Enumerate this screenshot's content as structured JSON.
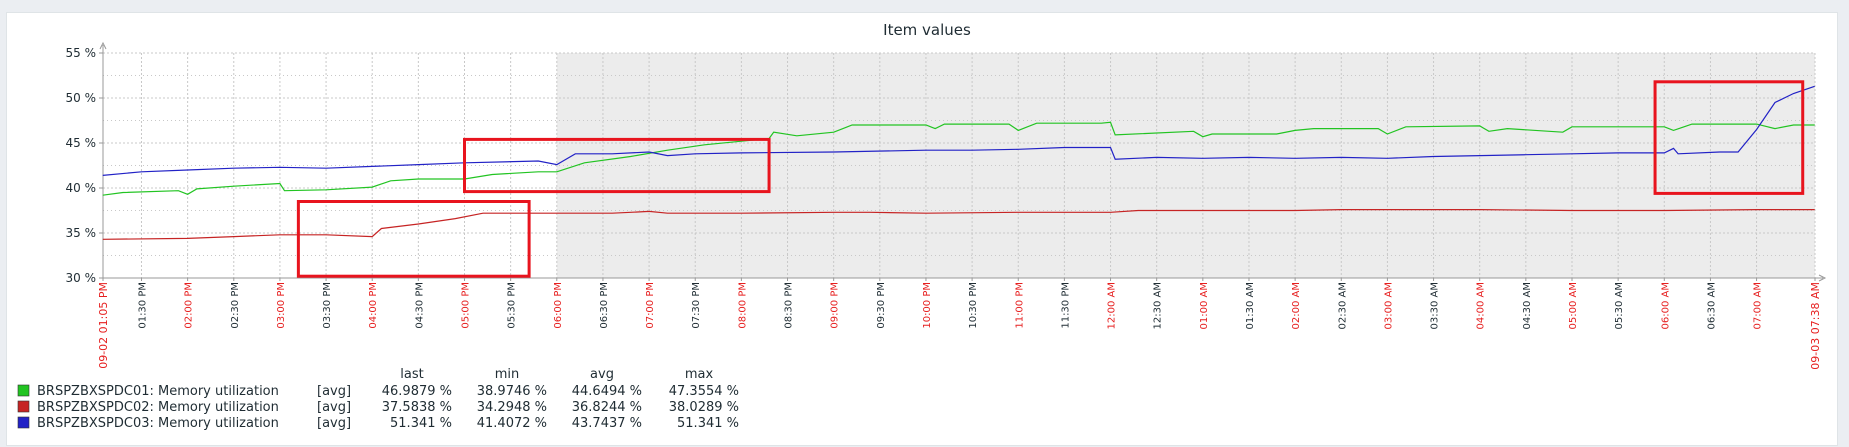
{
  "chart_data": {
    "type": "line",
    "title": "Item values",
    "y_ticks": [
      "55 %",
      "50 %",
      "45 %",
      "40 %",
      "35 %",
      "30 %"
    ],
    "ylim": [
      30,
      55
    ],
    "x_ticks": [
      {
        "label": "09-02 01:05 PM",
        "hour": 13.083,
        "major": true
      },
      {
        "label": "01:30 PM",
        "hour": 13.5,
        "major": false
      },
      {
        "label": "02:00 PM",
        "hour": 14,
        "major": true
      },
      {
        "label": "02:30 PM",
        "hour": 14.5,
        "major": false
      },
      {
        "label": "03:00 PM",
        "hour": 15,
        "major": true
      },
      {
        "label": "03:30 PM",
        "hour": 15.5,
        "major": false
      },
      {
        "label": "04:00 PM",
        "hour": 16,
        "major": true
      },
      {
        "label": "04:30 PM",
        "hour": 16.5,
        "major": false
      },
      {
        "label": "05:00 PM",
        "hour": 17,
        "major": true
      },
      {
        "label": "05:30 PM",
        "hour": 17.5,
        "major": false
      },
      {
        "label": "06:00 PM",
        "hour": 18,
        "major": true
      },
      {
        "label": "06:30 PM",
        "hour": 18.5,
        "major": false
      },
      {
        "label": "07:00 PM",
        "hour": 19,
        "major": true
      },
      {
        "label": "07:30 PM",
        "hour": 19.5,
        "major": false
      },
      {
        "label": "08:00 PM",
        "hour": 20,
        "major": true
      },
      {
        "label": "08:30 PM",
        "hour": 20.5,
        "major": false
      },
      {
        "label": "09:00 PM",
        "hour": 21,
        "major": true
      },
      {
        "label": "09:30 PM",
        "hour": 21.5,
        "major": false
      },
      {
        "label": "10:00 PM",
        "hour": 22,
        "major": true
      },
      {
        "label": "10:30 PM",
        "hour": 22.5,
        "major": false
      },
      {
        "label": "11:00 PM",
        "hour": 23,
        "major": true
      },
      {
        "label": "11:30 PM",
        "hour": 23.5,
        "major": false
      },
      {
        "label": "12:00 AM",
        "hour": 24,
        "major": true
      },
      {
        "label": "12:30 AM",
        "hour": 24.5,
        "major": false
      },
      {
        "label": "01:00 AM",
        "hour": 25,
        "major": true
      },
      {
        "label": "01:30 AM",
        "hour": 25.5,
        "major": false
      },
      {
        "label": "02:00 AM",
        "hour": 26,
        "major": true
      },
      {
        "label": "02:30 AM",
        "hour": 26.5,
        "major": false
      },
      {
        "label": "03:00 AM",
        "hour": 27,
        "major": true
      },
      {
        "label": "03:30 AM",
        "hour": 27.5,
        "major": false
      },
      {
        "label": "04:00 AM",
        "hour": 28,
        "major": true
      },
      {
        "label": "04:30 AM",
        "hour": 28.5,
        "major": false
      },
      {
        "label": "05:00 AM",
        "hour": 29,
        "major": true
      },
      {
        "label": "05:30 AM",
        "hour": 29.5,
        "major": false
      },
      {
        "label": "06:00 AM",
        "hour": 30,
        "major": true
      },
      {
        "label": "06:30 AM",
        "hour": 30.5,
        "major": false
      },
      {
        "label": "07:00 AM",
        "hour": 31,
        "major": true
      },
      {
        "label": "09-03 07:38 AM",
        "hour": 31.633,
        "major": true
      }
    ],
    "x_range_hours": [
      13.083,
      31.633
    ],
    "shaded_from_hour": 18,
    "grid": true,
    "series": [
      {
        "name": "BRSPZBXSPDC01: Memory utilization",
        "color": "#22c422",
        "points": [
          [
            13.08,
            39.2
          ],
          [
            13.3,
            39.5
          ],
          [
            13.9,
            39.7
          ],
          [
            14.0,
            39.3
          ],
          [
            14.1,
            39.9
          ],
          [
            14.5,
            40.2
          ],
          [
            15.0,
            40.5
          ],
          [
            15.05,
            39.7
          ],
          [
            15.5,
            39.8
          ],
          [
            16.0,
            40.1
          ],
          [
            16.2,
            40.8
          ],
          [
            16.5,
            41.0
          ],
          [
            17.0,
            41.0
          ],
          [
            17.3,
            41.5
          ],
          [
            17.8,
            41.8
          ],
          [
            18.0,
            41.8
          ],
          [
            18.3,
            42.8
          ],
          [
            18.8,
            43.5
          ],
          [
            19.2,
            44.2
          ],
          [
            19.6,
            44.8
          ],
          [
            20.0,
            45.2
          ],
          [
            20.3,
            45.5
          ],
          [
            20.35,
            46.2
          ],
          [
            20.6,
            45.8
          ],
          [
            21.0,
            46.2
          ],
          [
            21.2,
            47.0
          ],
          [
            22.0,
            47.0
          ],
          [
            22.1,
            46.6
          ],
          [
            22.2,
            47.1
          ],
          [
            22.9,
            47.1
          ],
          [
            23.0,
            46.4
          ],
          [
            23.2,
            47.2
          ],
          [
            23.9,
            47.2
          ],
          [
            24.0,
            47.3
          ],
          [
            24.05,
            45.9
          ],
          [
            24.9,
            46.3
          ],
          [
            25.0,
            45.7
          ],
          [
            25.1,
            46.0
          ],
          [
            25.8,
            46.0
          ],
          [
            26.0,
            46.4
          ],
          [
            26.2,
            46.6
          ],
          [
            26.9,
            46.6
          ],
          [
            27.0,
            46.0
          ],
          [
            27.2,
            46.8
          ],
          [
            28.0,
            46.9
          ],
          [
            28.1,
            46.3
          ],
          [
            28.3,
            46.6
          ],
          [
            28.9,
            46.2
          ],
          [
            29.0,
            46.8
          ],
          [
            29.5,
            46.8
          ],
          [
            30.0,
            46.8
          ],
          [
            30.1,
            46.4
          ],
          [
            30.3,
            47.1
          ],
          [
            31.0,
            47.1
          ],
          [
            31.2,
            46.6
          ],
          [
            31.4,
            47.0
          ],
          [
            31.63,
            47.0
          ]
        ]
      },
      {
        "name": "BRSPZBXSPDC02: Memory utilization",
        "color": "#c62424",
        "points": [
          [
            13.08,
            34.3
          ],
          [
            14.0,
            34.4
          ],
          [
            14.5,
            34.6
          ],
          [
            15.0,
            34.8
          ],
          [
            15.5,
            34.8
          ],
          [
            16.0,
            34.6
          ],
          [
            16.1,
            35.5
          ],
          [
            16.5,
            36.0
          ],
          [
            16.9,
            36.6
          ],
          [
            17.2,
            37.2
          ],
          [
            17.6,
            37.2
          ],
          [
            18.0,
            37.2
          ],
          [
            18.6,
            37.2
          ],
          [
            19.0,
            37.4
          ],
          [
            19.2,
            37.2
          ],
          [
            20.0,
            37.2
          ],
          [
            21.0,
            37.3
          ],
          [
            21.4,
            37.3
          ],
          [
            22.0,
            37.2
          ],
          [
            23.0,
            37.3
          ],
          [
            24.0,
            37.3
          ],
          [
            24.3,
            37.5
          ],
          [
            25.0,
            37.5
          ],
          [
            26.0,
            37.5
          ],
          [
            26.5,
            37.6
          ],
          [
            27.0,
            37.6
          ],
          [
            28.0,
            37.6
          ],
          [
            29.0,
            37.5
          ],
          [
            29.5,
            37.5
          ],
          [
            30.0,
            37.5
          ],
          [
            31.0,
            37.6
          ],
          [
            31.63,
            37.6
          ]
        ]
      },
      {
        "name": "BRSPZBXSPDC03: Memory utilization",
        "color": "#2222c6",
        "points": [
          [
            13.08,
            41.4
          ],
          [
            13.5,
            41.8
          ],
          [
            14.0,
            42.0
          ],
          [
            14.5,
            42.2
          ],
          [
            15.0,
            42.3
          ],
          [
            15.5,
            42.2
          ],
          [
            16.0,
            42.4
          ],
          [
            16.5,
            42.6
          ],
          [
            17.0,
            42.8
          ],
          [
            17.8,
            43.0
          ],
          [
            18.0,
            42.6
          ],
          [
            18.2,
            43.8
          ],
          [
            18.6,
            43.8
          ],
          [
            19.0,
            44.0
          ],
          [
            19.2,
            43.6
          ],
          [
            19.5,
            43.8
          ],
          [
            20.0,
            43.9
          ],
          [
            21.0,
            44.0
          ],
          [
            22.0,
            44.2
          ],
          [
            22.5,
            44.2
          ],
          [
            23.0,
            44.3
          ],
          [
            23.5,
            44.5
          ],
          [
            24.0,
            44.5
          ],
          [
            24.05,
            43.2
          ],
          [
            24.5,
            43.4
          ],
          [
            25.0,
            43.3
          ],
          [
            25.5,
            43.4
          ],
          [
            26.0,
            43.3
          ],
          [
            26.5,
            43.4
          ],
          [
            27.0,
            43.3
          ],
          [
            27.5,
            43.5
          ],
          [
            28.0,
            43.6
          ],
          [
            28.5,
            43.7
          ],
          [
            29.0,
            43.8
          ],
          [
            29.5,
            43.9
          ],
          [
            30.0,
            43.9
          ],
          [
            30.1,
            44.4
          ],
          [
            30.15,
            43.8
          ],
          [
            30.6,
            44.0
          ],
          [
            30.8,
            44.0
          ],
          [
            31.0,
            46.5
          ],
          [
            31.2,
            49.5
          ],
          [
            31.4,
            50.5
          ],
          [
            31.63,
            51.3
          ]
        ]
      }
    ]
  },
  "legend": {
    "headers": {
      "last": "last",
      "min": "min",
      "avg": "avg",
      "max": "max"
    },
    "rows": [
      {
        "color": "#22c422",
        "name": "BRSPZBXSPDC01: Memory utilization",
        "func": "[avg]",
        "last": "46.9879 %",
        "min": "38.9746 %",
        "avg": "44.6494 %",
        "max": "47.3554 %"
      },
      {
        "color": "#c62424",
        "name": "BRSPZBXSPDC02: Memory utilization",
        "func": "[avg]",
        "last": "37.5838 %",
        "min": "34.2948 %",
        "avg": "36.8244 %",
        "max": "38.0289 %"
      },
      {
        "color": "#2222c6",
        "name": "BRSPZBXSPDC03: Memory utilization",
        "func": "[avg]",
        "last": "51.341 %",
        "min": "41.4072 %",
        "avg": "43.7437 %",
        "max": "51.341 %"
      }
    ]
  },
  "highlights": [
    {
      "from_hour": 15.2,
      "to_hour": 17.7,
      "from_value": 30.2,
      "to_value": 38.5
    },
    {
      "from_hour": 17.0,
      "to_hour": 20.3,
      "from_value": 39.6,
      "to_value": 45.4
    },
    {
      "from_hour": 29.9,
      "to_hour": 31.5,
      "from_value": 39.4,
      "to_value": 51.8
    }
  ],
  "colors": {
    "highlight": "#e8141e",
    "grid": "#c8c8c8",
    "shade": "#ececec",
    "axis_text": "#1f2c33",
    "major_tick_text": "#e61e1e"
  }
}
